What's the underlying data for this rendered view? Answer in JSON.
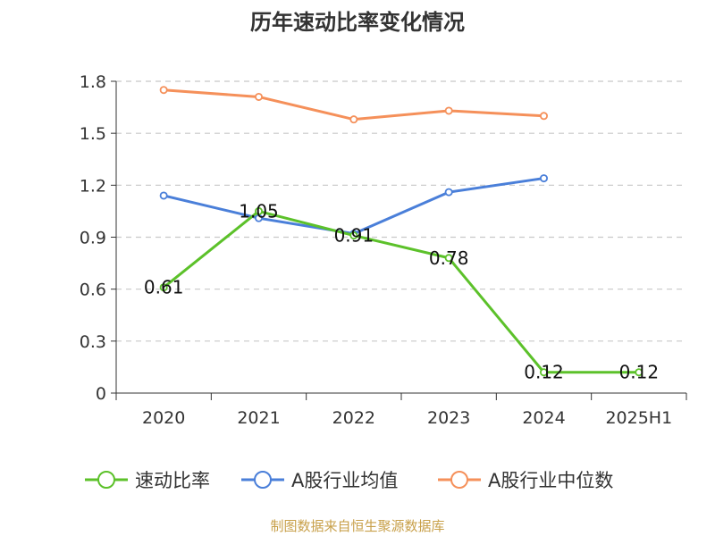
{
  "chart_data": {
    "type": "line",
    "title": "历年速动比率变化情况",
    "categories": [
      "2020",
      "2021",
      "2022",
      "2023",
      "2024",
      "2025H1"
    ],
    "y_ticks": [
      "0",
      "0.3",
      "0.6",
      "0.9",
      "1.2",
      "1.5",
      "1.8"
    ],
    "ylim": [
      0,
      1.8
    ],
    "grid": true,
    "legend_position": "bottom",
    "series": [
      {
        "name": "速动比率",
        "color": "#5cc12a",
        "values": [
          0.61,
          1.05,
          0.91,
          0.78,
          0.12,
          0.12
        ],
        "labels": [
          "0.61",
          "1.05",
          "0.91",
          "0.78",
          "0.12",
          "0.12"
        ]
      },
      {
        "name": "A股行业均值",
        "color": "#4a7fd9",
        "values": [
          1.14,
          1.01,
          0.92,
          1.16,
          1.24,
          null
        ]
      },
      {
        "name": "A股行业中位数",
        "color": "#f5905a",
        "values": [
          1.75,
          1.71,
          1.58,
          1.63,
          1.6,
          null
        ]
      }
    ]
  },
  "footer": {
    "source": "制图数据来自恒生聚源数据库"
  }
}
